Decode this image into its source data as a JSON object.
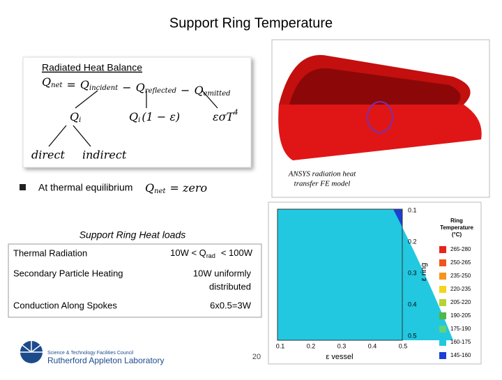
{
  "header": {
    "title": "Support Ring Temperature"
  },
  "balance": {
    "heading": "Radiated Heat Balance",
    "equation": [
      {
        "base": "Q",
        "sub": "net"
      },
      {
        "op": "="
      },
      {
        "base": "Q",
        "sub": "incident"
      },
      {
        "op": "−"
      },
      {
        "base": "Q",
        "sub": "reflected"
      },
      {
        "op": "−"
      },
      {
        "base": "Q",
        "sub": "emitted"
      }
    ],
    "branches": [
      {
        "base": "Q",
        "sub": "i",
        "rest": ""
      },
      {
        "base": "Q",
        "sub": "i",
        "rest": "(1 − ε)"
      },
      {
        "base": "εσT",
        "sup": "4"
      }
    ],
    "leaves": [
      "direct",
      "indirect"
    ]
  },
  "bullet": {
    "text": "At thermal equilibrium",
    "eq_base": "Q",
    "eq_sub": "net",
    "eq_rest": "= zero"
  },
  "model": {
    "caption": [
      "ANSYS radiation heat",
      "transfer FE model"
    ]
  },
  "contour": {
    "x_label": "ε vessel",
    "y_label": "ε ring",
    "x_ticks": [
      "0.1",
      "0.2",
      "0.3",
      "0.4",
      "0.5"
    ],
    "y_ticks": [
      "0.1",
      "0.2",
      "0.3",
      "0.4",
      "0.5"
    ],
    "legend_title": [
      "Ring",
      "Temperature",
      "(°C)"
    ],
    "legend": [
      {
        "label": "265-280",
        "color": "#e8231b"
      },
      {
        "label": "250-265",
        "color": "#f2541b"
      },
      {
        "label": "235-250",
        "color": "#f7941d"
      },
      {
        "label": "220-235",
        "color": "#f5d51b"
      },
      {
        "label": "205-220",
        "color": "#b6d334"
      },
      {
        "label": "190-205",
        "color": "#4fb848"
      },
      {
        "label": "175-190",
        "color": "#5fd47a"
      },
      {
        "label": "160-175",
        "color": "#22c8e0"
      },
      {
        "label": "145-160",
        "color": "#1a3fd4"
      }
    ]
  },
  "table": {
    "caption": "Support Ring Heat loads",
    "rows": [
      [
        "Thermal Radiation",
        {
          "pre": "10W < Q",
          "sub": "rad",
          "post": "< 100W"
        }
      ],
      [
        "Secondary Particle Heating",
        [
          "10W uniformly",
          "distributed"
        ]
      ],
      [
        "Conduction Along Spokes",
        "6x0.5=3W"
      ]
    ]
  },
  "footer": {
    "page": "20",
    "org1": "Science & Technology Facilities Council",
    "org2": "Rutherford Appleton Laboratory"
  }
}
